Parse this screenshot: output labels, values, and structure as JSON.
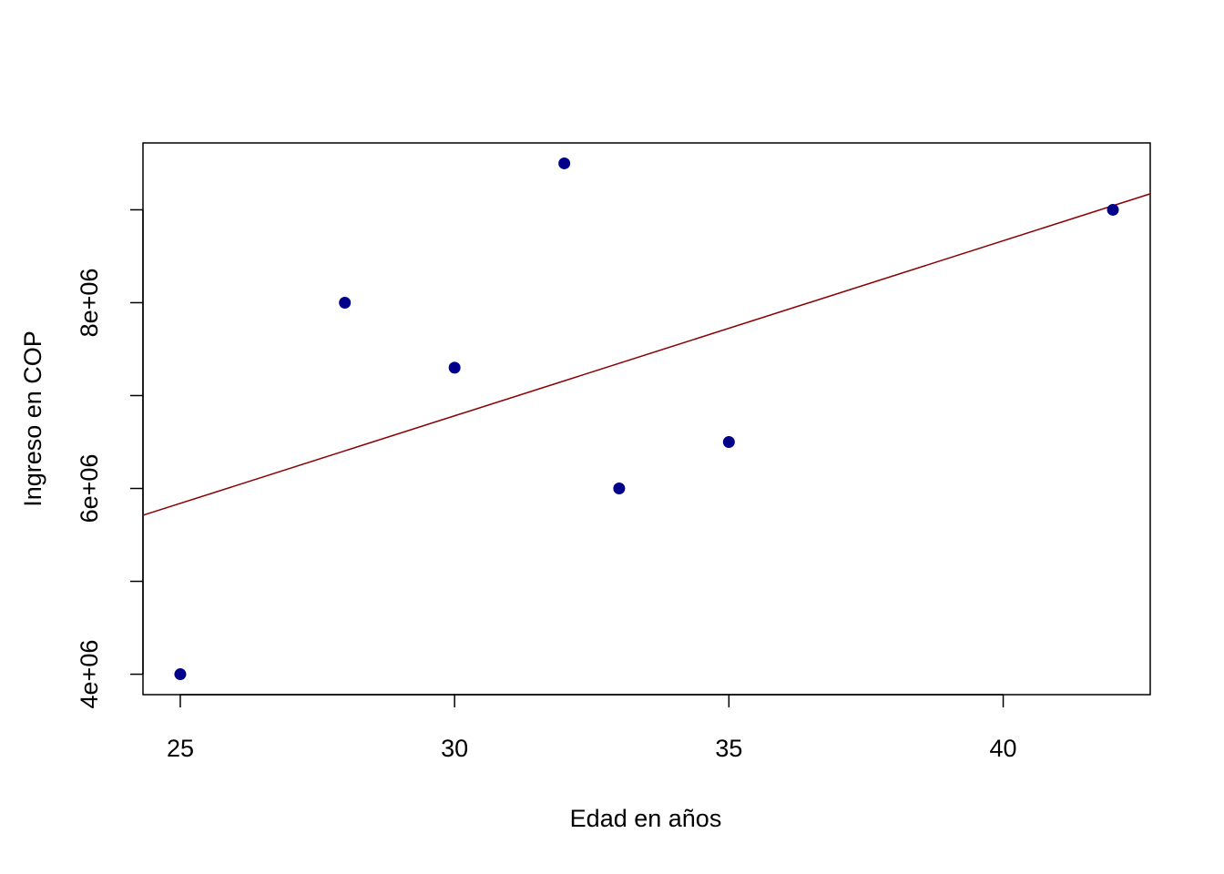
{
  "chart_data": {
    "type": "scatter",
    "x_label": "Edad en años",
    "y_label": "Ingreso en COP",
    "x": [
      25,
      28,
      30,
      32,
      33,
      35,
      42
    ],
    "values": [
      4000000,
      8000000,
      7300000,
      9500000,
      6000000,
      6500000,
      9000000
    ],
    "color": "#00008b",
    "trend_line": {
      "intercept": 1127000,
      "slope": 188500,
      "color": "#8b0000"
    },
    "xlim": [
      24.32,
      42.68
    ],
    "ylim": [
      3780000,
      9720000
    ],
    "xticks": [
      25,
      30,
      35,
      40
    ],
    "yticks": [
      {
        "value": 4000000,
        "label": "4e+06"
      },
      5000000,
      {
        "value": 6000000,
        "label": "6e+06"
      },
      7000000,
      {
        "value": 8000000,
        "label": "8e+06"
      },
      9000000
    ],
    "grid": false
  }
}
